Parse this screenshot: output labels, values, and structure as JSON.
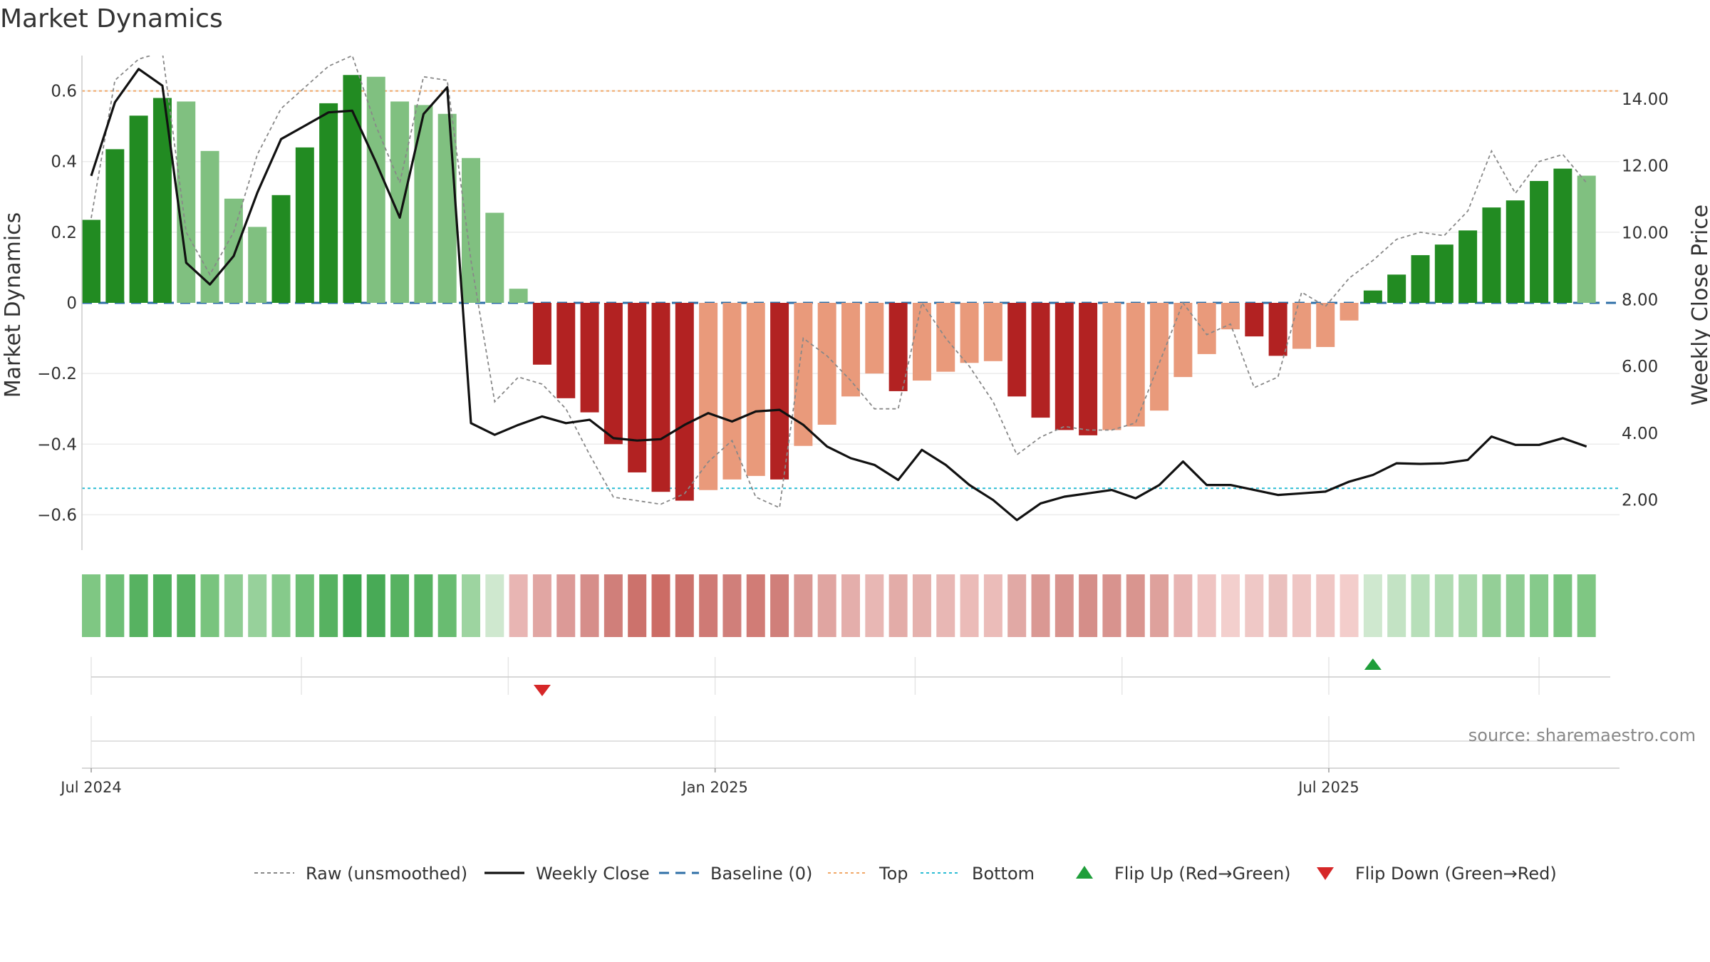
{
  "chart_data": {
    "type": "bar",
    "title": "Market Dynamics",
    "ylabel_left": "Market Dynamics",
    "ylabel_right": "Weekly Close Price",
    "ylim_left": [
      -0.7,
      0.7
    ],
    "ylim_right": [
      0.5,
      15.3
    ],
    "left_ticks": [
      0.6,
      0.4,
      0.2,
      0,
      -0.2,
      -0.4,
      -0.6
    ],
    "left_tick_labels": [
      "0.6",
      "0.4",
      "0.2",
      "0",
      "−0.2",
      "−0.4",
      "−0.6"
    ],
    "right_ticks": [
      14,
      12,
      10,
      8,
      6,
      4,
      2
    ],
    "right_tick_labels": [
      "14.00",
      "12.00",
      "10.00",
      "8.00",
      "6.00",
      "4.00",
      "2.00"
    ],
    "x_start": "2024-07-01",
    "x_end": "2025-09-22",
    "week_start": "2024-07-01",
    "date_ticks": [
      {
        "date": "2024-07-01",
        "label": "Jul 2024"
      },
      {
        "date": "2025-01-01",
        "label": "Jan 2025"
      },
      {
        "date": "2025-07-01",
        "label": "Jul 2025"
      }
    ],
    "minor_date_grid": [
      "2024-09-01",
      "2024-11-01",
      "2025-03-01",
      "2025-05-01",
      "2025-09-01"
    ],
    "top_level": 0.6,
    "bottom_level": -0.525,
    "baseline": 0,
    "grid": true,
    "grid_lines": [
      0.6,
      0.4,
      0.2,
      -0.2,
      -0.4,
      -0.6
    ],
    "series": [
      {
        "name": "Market Dynamics",
        "values": [
          0.235,
          0.435,
          0.53,
          0.58,
          0.57,
          0.43,
          0.295,
          0.215,
          0.305,
          0.44,
          0.565,
          0.645,
          0.64,
          0.57,
          0.56,
          0.535,
          0.41,
          0.255,
          0.04,
          -0.175,
          -0.27,
          -0.31,
          -0.4,
          -0.48,
          -0.535,
          -0.56,
          -0.53,
          -0.5,
          -0.49,
          -0.5,
          -0.405,
          -0.345,
          -0.265,
          -0.2,
          -0.25,
          -0.22,
          -0.195,
          -0.17,
          -0.165,
          -0.265,
          -0.325,
          -0.36,
          -0.375,
          -0.36,
          -0.35,
          -0.305,
          -0.21,
          -0.145,
          -0.075,
          -0.095,
          -0.15,
          -0.13,
          -0.125,
          -0.05,
          0.035,
          0.08,
          0.135,
          0.165,
          0.205,
          0.27,
          0.29,
          0.345,
          0.38,
          0.36
        ],
        "bar_colors": [
          "#228b22",
          "#228b22",
          "#228b22",
          "#228b22",
          "#80c080",
          "#80c080",
          "#80c080",
          "#80c080",
          "#228b22",
          "#228b22",
          "#228b22",
          "#228b22",
          "#80c080",
          "#80c080",
          "#80c080",
          "#80c080",
          "#80c080",
          "#80c080",
          "#80c080",
          "#b22222",
          "#b22222",
          "#b22222",
          "#b22222",
          "#b22222",
          "#b22222",
          "#b22222",
          "#e99a7b",
          "#e99a7b",
          "#e99a7b",
          "#b22222",
          "#e99a7b",
          "#e99a7b",
          "#e99a7b",
          "#e99a7b",
          "#b22222",
          "#e99a7b",
          "#e99a7b",
          "#e99a7b",
          "#e99a7b",
          "#b22222",
          "#b22222",
          "#b22222",
          "#b22222",
          "#e99a7b",
          "#e99a7b",
          "#e99a7b",
          "#e99a7b",
          "#e99a7b",
          "#e99a7b",
          "#b22222",
          "#b22222",
          "#e99a7b",
          "#e99a7b",
          "#e99a7b",
          "#228b22",
          "#228b22",
          "#228b22",
          "#228b22",
          "#228b22",
          "#228b22",
          "#228b22",
          "#228b22",
          "#228b22",
          "#80c080"
        ]
      },
      {
        "name": "Raw (unsmoothed)",
        "values": [
          0.24,
          0.63,
          0.69,
          0.71,
          0.2,
          0.08,
          0.2,
          0.42,
          0.55,
          0.61,
          0.67,
          0.7,
          0.5,
          0.34,
          0.64,
          0.63,
          0.12,
          -0.28,
          -0.21,
          -0.23,
          -0.3,
          -0.43,
          -0.55,
          -0.56,
          -0.57,
          -0.54,
          -0.45,
          -0.39,
          -0.55,
          -0.58,
          -0.1,
          -0.15,
          -0.22,
          -0.3,
          -0.3,
          0.0,
          -0.1,
          -0.18,
          -0.28,
          -0.43,
          -0.38,
          -0.35,
          -0.36,
          -0.36,
          -0.34,
          -0.17,
          0.0,
          -0.09,
          -0.06,
          -0.24,
          -0.21,
          0.03,
          -0.01,
          0.07,
          0.12,
          0.18,
          0.2,
          0.19,
          0.26,
          0.43,
          0.31,
          0.4,
          0.42,
          0.34
        ]
      },
      {
        "name": "Weekly Close",
        "values": [
          11.7,
          13.9,
          14.9,
          14.4,
          9.1,
          8.45,
          9.3,
          11.2,
          12.8,
          13.2,
          13.6,
          13.65,
          12.1,
          10.45,
          13.55,
          14.35,
          4.3,
          3.95,
          4.25,
          4.5,
          4.3,
          4.4,
          3.85,
          3.78,
          3.82,
          4.25,
          4.6,
          4.35,
          4.65,
          4.7,
          4.25,
          3.6,
          3.25,
          3.05,
          2.6,
          3.5,
          3.05,
          2.45,
          2.0,
          1.4,
          1.9,
          2.1,
          2.2,
          2.3,
          2.05,
          2.45,
          3.15,
          2.45,
          2.45,
          2.3,
          2.15,
          2.2,
          2.25,
          2.55,
          2.75,
          3.1,
          3.08,
          3.1,
          3.2,
          3.9,
          3.65,
          3.65,
          3.85,
          3.6
        ]
      }
    ],
    "heatmap_strip": {
      "colors": [
        "#7fc783",
        "#6ebf76",
        "#57b261",
        "#50af5c",
        "#57b261",
        "#79c47e",
        "#8fcd93",
        "#97d19b",
        "#86ca8b",
        "#6ebf76",
        "#57b261",
        "#3ea54e",
        "#48aa56",
        "#57b261",
        "#57b261",
        "#69bc71",
        "#9dd4a0",
        "#cfe8cf",
        "#e8b5b3",
        "#e1a6a3",
        "#dc9a97",
        "#d68e8a",
        "#d07f7a",
        "#cc726c",
        "#cc6c65",
        "#cc726c",
        "#cf7a75",
        "#d07f7a",
        "#d17c76",
        "#d07f7a",
        "#da9893",
        "#e0a5a1",
        "#e4aeab",
        "#e8b7b4",
        "#e3aca8",
        "#e5b1ad",
        "#e8b7b4",
        "#ebbbb8",
        "#ebbcb9",
        "#e1a9a5",
        "#da9893",
        "#d8938e",
        "#d58e89",
        "#d8938e",
        "#d9958f",
        "#dea19c",
        "#e8b5b3",
        "#efc4c2",
        "#f3cfcd",
        "#efc8c6",
        "#eac0be",
        "#efc6c4",
        "#efc6c4",
        "#f3cdcb",
        "#cfe8cf",
        "#c3e3c4",
        "#b7dfb9",
        "#b0dcb2",
        "#a9d9ab",
        "#94cf97",
        "#8fcd93",
        "#86ca8b",
        "#79c47e",
        "#7fc783"
      ]
    },
    "flip_markers": [
      {
        "type": "Flip Down (Green→Red)",
        "week_index": 19
      },
      {
        "type": "Flip Up (Red→Green)",
        "week_index": 54
      }
    ],
    "legend": {
      "placement": "bottom-center",
      "entries": [
        {
          "label": "Raw (unsmoothed)",
          "style": "dashed",
          "color": "#888888"
        },
        {
          "label": "Weekly Close",
          "style": "solid",
          "color": "#111111"
        },
        {
          "label": "Baseline (0)",
          "style": "longdash",
          "color": "#2e6fa7"
        },
        {
          "label": "Top",
          "style": "dotted",
          "color": "#f0a868"
        },
        {
          "label": "Bottom",
          "style": "dotted",
          "color": "#2bbcd4"
        },
        {
          "label": "Flip Up (Red→Green)",
          "style": "triangle-up",
          "color": "#1f9e3a"
        },
        {
          "label": "Flip Down (Green→Red)",
          "style": "triangle-down",
          "color": "#d62728"
        }
      ]
    },
    "source": "source: sharemaestro.com"
  },
  "colors": {
    "green_strong": "#228b22",
    "green_light": "#80c080",
    "red_strong": "#b22222",
    "red_light": "#e99a7b",
    "top": "#f0a868",
    "bottom": "#2bbcd4",
    "baseline": "#2e6fa7",
    "raw": "#888888",
    "close": "#111111"
  }
}
